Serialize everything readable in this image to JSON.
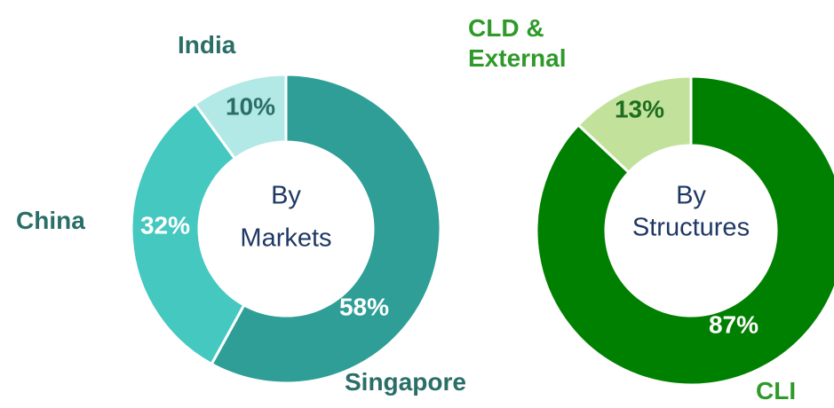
{
  "chart_data": [
    {
      "type": "donut",
      "center_label": [
        "By",
        "Markets"
      ],
      "categories": [
        "Singapore",
        "China",
        "India"
      ],
      "values": [
        58,
        32,
        10
      ],
      "value_labels": [
        "58%",
        "32%",
        "10%"
      ],
      "colors": [
        "#2e9e96",
        "#45c8c0",
        "#b2e8e6"
      ]
    },
    {
      "type": "donut",
      "center_label": [
        "By",
        "Structures"
      ],
      "categories": [
        "CLI",
        "CLD & External"
      ],
      "values": [
        87,
        13
      ],
      "value_labels": [
        "87%",
        "13%"
      ],
      "colors": [
        "#008000",
        "#c2e29c"
      ]
    }
  ]
}
